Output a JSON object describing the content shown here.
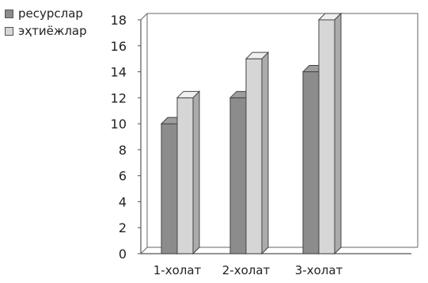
{
  "chart_data": {
    "type": "bar",
    "categories": [
      "1-холат",
      "2-холат",
      "3-холат"
    ],
    "series": [
      {
        "name": "ресурслар",
        "values": [
          10,
          12,
          14
        ],
        "color": "#8c8c8c"
      },
      {
        "name": "эҳтиёжлар",
        "values": [
          12,
          15,
          18
        ],
        "color": "#d6d6d6"
      }
    ],
    "yticks": [
      "0",
      "2",
      "4",
      "6",
      "8",
      "10",
      "12",
      "14",
      "16",
      "18"
    ],
    "ylim": [
      0,
      18
    ],
    "grid": false,
    "legend_position": "top-left",
    "style": "3d"
  }
}
